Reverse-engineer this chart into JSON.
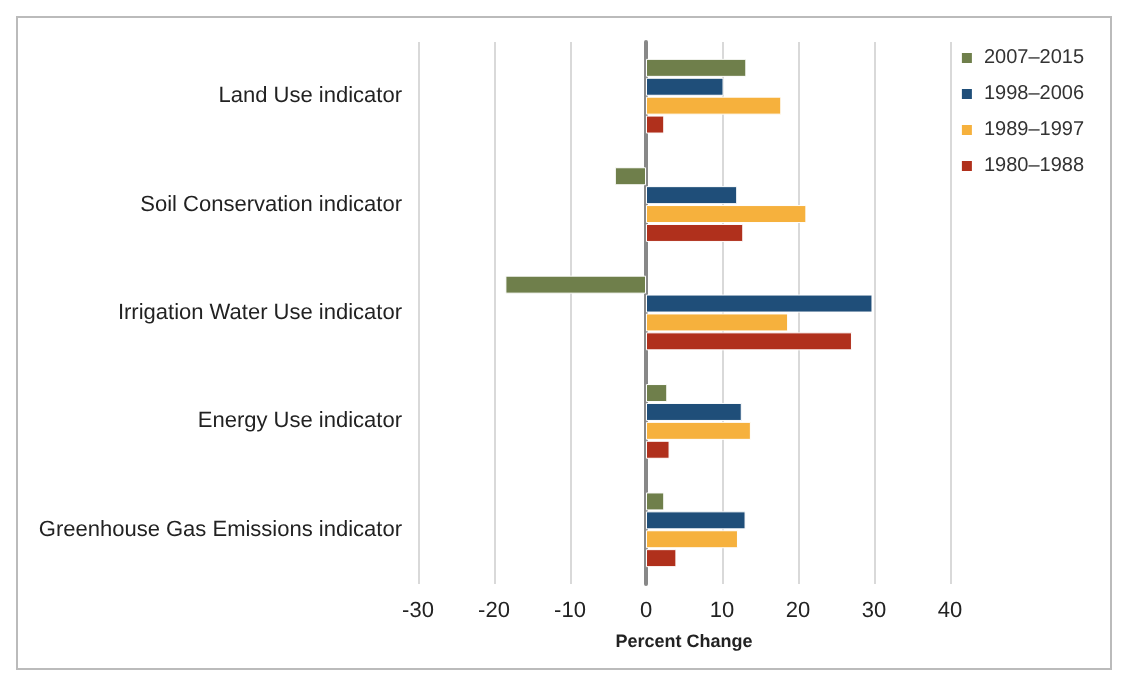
{
  "chart_data": {
    "type": "bar",
    "orientation": "horizontal",
    "xlabel": "Percent Change",
    "categories": [
      "Land Use indicator",
      "Soil Conservation indicator",
      "Irrigation Water Use indicator",
      "Energy Use indicator",
      "Greenhouse Gas Emissions indicator"
    ],
    "series": [
      {
        "name": "2007–2015",
        "color": "#6f7f4b",
        "values": [
          13.2,
          -4.1,
          -18.5,
          2.8,
          2.4
        ]
      },
      {
        "name": "1998–2006",
        "color": "#1f4e79",
        "values": [
          10.2,
          12.0,
          29.8,
          12.6,
          13.1
        ]
      },
      {
        "name": "1989–1997",
        "color": "#f6b13d",
        "values": [
          17.8,
          21.1,
          18.7,
          13.8,
          12.1
        ]
      },
      {
        "name": "1980–1988",
        "color": "#b0301c",
        "values": [
          2.4,
          12.8,
          27.1,
          3.1,
          4.0
        ]
      }
    ],
    "xlim": [
      -30,
      40
    ],
    "xticks": [
      -30,
      -20,
      -10,
      0,
      10,
      20,
      30,
      40
    ],
    "grid": "x",
    "legend": "top right"
  }
}
